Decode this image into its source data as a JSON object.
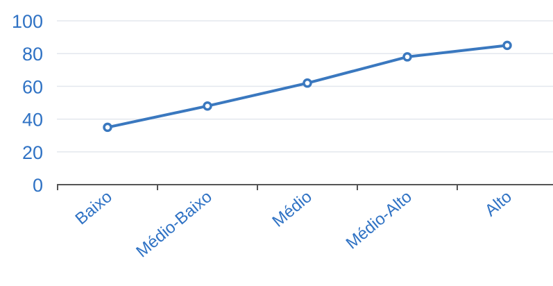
{
  "chart_data": {
    "type": "line",
    "categories": [
      "Baixo",
      "Médio-Baixo",
      "Médio",
      "Médio-Alto",
      "Alto"
    ],
    "series": [
      {
        "values": [
          35,
          48,
          62,
          78,
          85
        ]
      }
    ],
    "ylim": [
      0,
      100
    ],
    "yticks": [
      0,
      20,
      40,
      60,
      80,
      100
    ],
    "grid": true,
    "legend": "none",
    "colors": {
      "line": "#3a78bf",
      "tick_text": "#2f72c4",
      "grid": "#e3e7ee",
      "axis": "#555555",
      "marker_fill": "#ffffff"
    }
  }
}
